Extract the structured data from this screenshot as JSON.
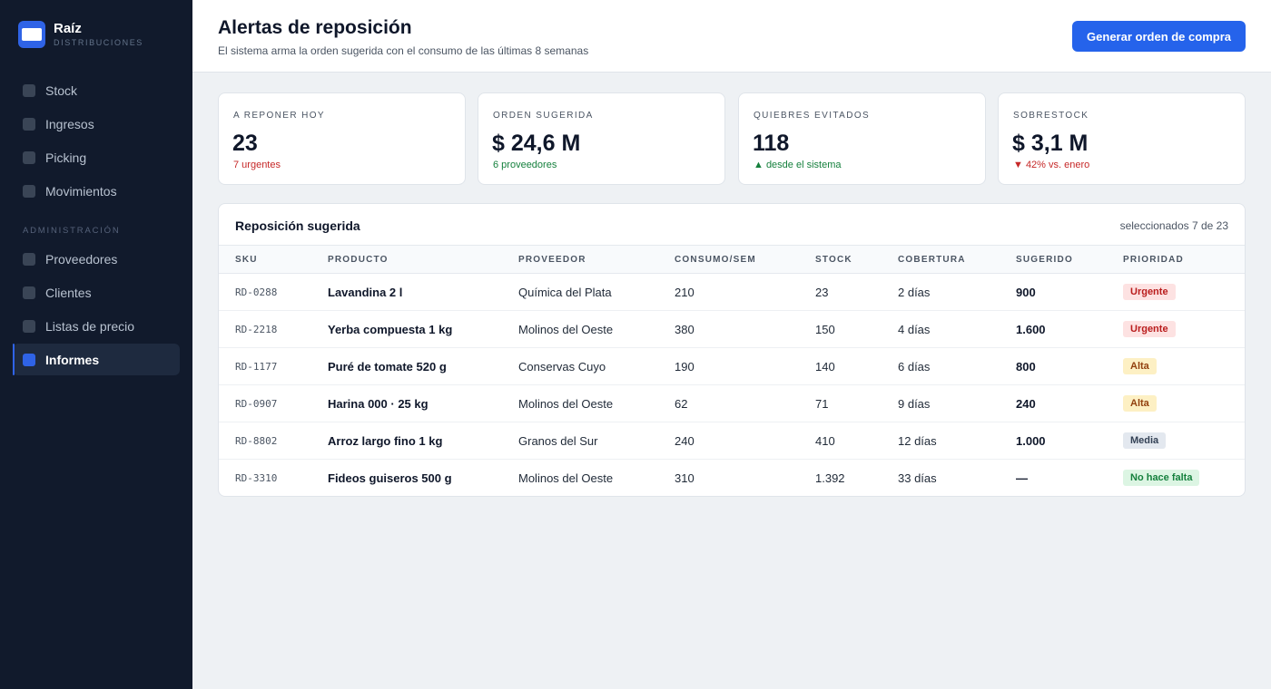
{
  "brand": {
    "name": "Raíz",
    "subtitle": "DISTRIBUCIONES"
  },
  "sidebar": {
    "items": [
      {
        "label": "Stock"
      },
      {
        "label": "Ingresos"
      },
      {
        "label": "Picking"
      },
      {
        "label": "Movimientos"
      }
    ],
    "section_label": "ADMINISTRACIÓN",
    "admin_items": [
      {
        "label": "Proveedores"
      },
      {
        "label": "Clientes"
      },
      {
        "label": "Listas de precio"
      },
      {
        "label": "Informes",
        "active": true
      }
    ]
  },
  "header": {
    "title": "Alertas de reposición",
    "subtitle": "El sistema arma la orden sugerida con el consumo de las últimas 8 semanas",
    "primary_button": "Generar orden de compra"
  },
  "kpis": [
    {
      "label": "A REPONER HOY",
      "value": "23",
      "note": "7 urgentes",
      "note_color": "#c62828"
    },
    {
      "label": "ORDEN SUGERIDA",
      "value": "$ 24,6 M",
      "note": "6 proveedores",
      "note_color": "#15803d"
    },
    {
      "label": "QUIEBRES EVITADOS",
      "value": "118",
      "note": "▲ desde el sistema",
      "note_color": "#15803d"
    },
    {
      "label": "SOBRESTOCK",
      "value": "$ 3,1 M",
      "note": "▼ 42% vs. enero",
      "note_color": "#c62828"
    }
  ],
  "table": {
    "title": "Reposición sugerida",
    "meta": "seleccionados 7 de 23",
    "columns": [
      "SKU",
      "PRODUCTO",
      "PROVEEDOR",
      "CONSUMO/SEM",
      "STOCK",
      "COBERTURA",
      "SUGERIDO",
      "PRIORIDAD"
    ],
    "rows": [
      {
        "sku": "RD-0288",
        "producto": "Lavandina 2 l",
        "proveedor": "Química del Plata",
        "consumo": "210",
        "stock": "23",
        "cobertura": "2 días",
        "sugerido": "900",
        "prioridad": "Urgente"
      },
      {
        "sku": "RD-2218",
        "producto": "Yerba compuesta 1 kg",
        "proveedor": "Molinos del Oeste",
        "consumo": "380",
        "stock": "150",
        "cobertura": "4 días",
        "sugerido": "1.600",
        "prioridad": "Urgente"
      },
      {
        "sku": "RD-1177",
        "producto": "Puré de tomate 520 g",
        "proveedor": "Conservas Cuyo",
        "consumo": "190",
        "stock": "140",
        "cobertura": "6 días",
        "sugerido": "800",
        "prioridad": "Alta"
      },
      {
        "sku": "RD-0907",
        "producto": "Harina 000 · 25 kg",
        "proveedor": "Molinos del Oeste",
        "consumo": "62",
        "stock": "71",
        "cobertura": "9 días",
        "sugerido": "240",
        "prioridad": "Alta"
      },
      {
        "sku": "RD-8802",
        "producto": "Arroz largo fino 1 kg",
        "proveedor": "Granos del Sur",
        "consumo": "240",
        "stock": "410",
        "cobertura": "12 días",
        "sugerido": "1.000",
        "prioridad": "Media"
      },
      {
        "sku": "RD-3310",
        "producto": "Fideos guiseros 500 g",
        "proveedor": "Molinos del Oeste",
        "consumo": "310",
        "stock": "1.392",
        "cobertura": "33 días",
        "sugerido": "—",
        "prioridad": "No hace falta"
      }
    ]
  },
  "colors": {
    "accent": "#2563eb",
    "sidebar_bg": "#111a2c",
    "urgente": "#b91c1c",
    "alta": "#92400e",
    "media": "#334155",
    "no_hace_falta": "#15803d"
  },
  "icons": {
    "brand": "card-logo-icon",
    "nav": "square-icon"
  }
}
